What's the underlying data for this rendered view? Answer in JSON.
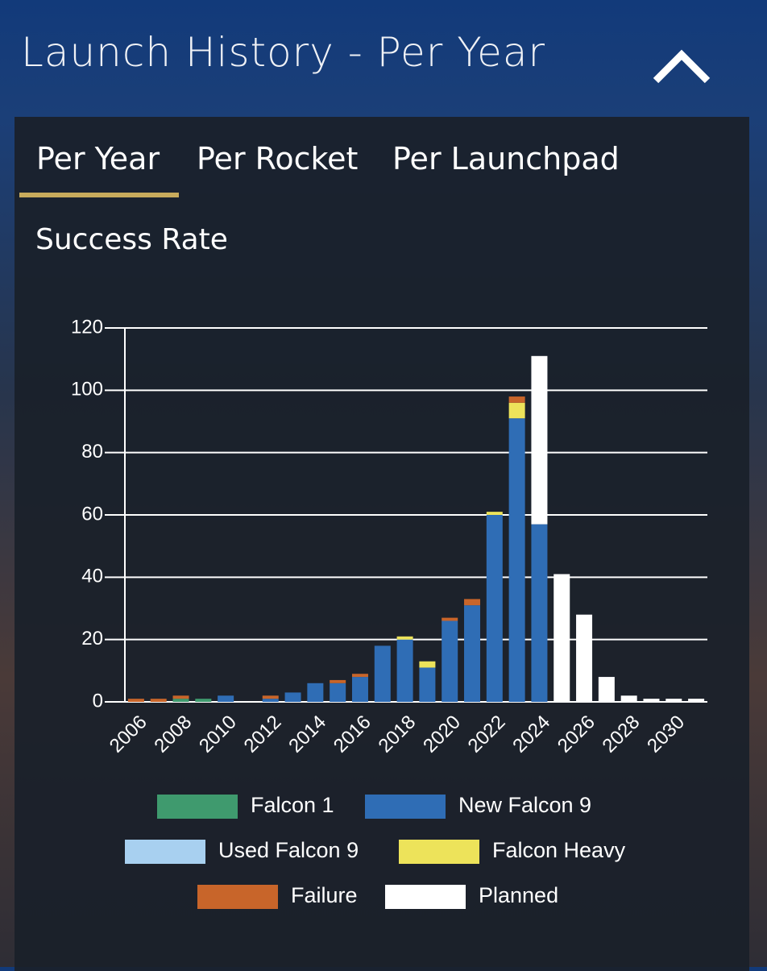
{
  "header": {
    "title": "Launch History - Per Year"
  },
  "tabs": [
    "Per Year",
    "Per Rocket",
    "Per Launchpad"
  ],
  "section_title": "Success Rate",
  "chart_data": {
    "type": "bar",
    "stacked": true,
    "categories": [
      "2006",
      null,
      "2008",
      null,
      "2010",
      null,
      "2012",
      null,
      "2014",
      null,
      "2016",
      null,
      "2018",
      null,
      "2020",
      null,
      "2022",
      null,
      "2024",
      null,
      "2026",
      null,
      "2028",
      null,
      "2030",
      null
    ],
    "series": [
      {
        "name": "Falcon 1",
        "color": "#3f9a6e",
        "values": [
          0,
          0,
          1,
          1,
          0,
          0,
          0,
          0,
          0,
          0,
          0,
          0,
          0,
          0,
          0,
          0,
          0,
          0,
          0,
          0,
          0,
          0,
          0,
          0,
          0,
          0
        ]
      },
      {
        "name": "New Falcon 9",
        "color": "#2f6db5",
        "values": [
          0,
          0,
          0,
          0,
          2,
          0,
          1,
          3,
          6,
          6,
          8,
          18,
          20,
          11,
          26,
          31,
          60,
          91,
          57,
          0,
          0,
          0,
          0,
          0,
          0,
          0
        ]
      },
      {
        "name": "Used Falcon 9",
        "color": "#a8d0f0",
        "values": [
          0,
          0,
          0,
          0,
          0,
          0,
          0,
          0,
          0,
          0,
          0,
          0,
          0,
          0,
          0,
          0,
          0,
          0,
          0,
          0,
          0,
          0,
          0,
          0,
          0,
          0
        ]
      },
      {
        "name": "Falcon Heavy",
        "color": "#ede35a",
        "values": [
          0,
          0,
          0,
          0,
          0,
          0,
          0,
          0,
          0,
          0,
          0,
          0,
          1,
          2,
          0,
          0,
          1,
          5,
          0,
          0,
          0,
          0,
          0,
          0,
          0,
          0
        ]
      },
      {
        "name": "Failure",
        "color": "#c8652a",
        "values": [
          1,
          1,
          1,
          0,
          0,
          0,
          1,
          0,
          0,
          1,
          1,
          0,
          0,
          0,
          1,
          2,
          0,
          2,
          0,
          0,
          0,
          0,
          0,
          0,
          0,
          0
        ]
      },
      {
        "name": "Planned",
        "color": "#ffffff",
        "values": [
          0,
          0,
          0,
          0,
          0,
          0,
          0,
          0,
          0,
          0,
          0,
          0,
          0,
          0,
          0,
          0,
          0,
          0,
          54,
          41,
          28,
          8,
          2,
          1,
          1,
          1
        ]
      }
    ],
    "ylim": [
      0,
      120
    ],
    "yticks": [
      0,
      20,
      40,
      60,
      80,
      100,
      120
    ],
    "grid": true,
    "legend": "bottom"
  }
}
